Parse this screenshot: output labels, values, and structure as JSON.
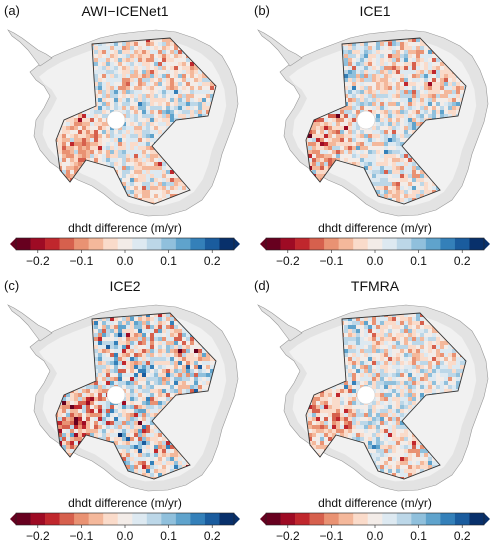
{
  "panels": [
    {
      "letter": "(a)",
      "title": "AWI−ICENet1",
      "intensity": 0.45
    },
    {
      "letter": "(b)",
      "title": "ICE1",
      "intensity": 0.55
    },
    {
      "letter": "(c)",
      "title": "ICE2",
      "intensity": 1.0
    },
    {
      "letter": "(d)",
      "title": "TFMRA",
      "intensity": 0.5
    }
  ],
  "colorbar": {
    "label": "dhdt difference (m/yr)",
    "ticks": [
      "−0.2",
      "−0.1",
      "0.0",
      "0.1",
      "0.2"
    ],
    "tick_values": [
      -0.2,
      -0.1,
      0.0,
      0.1,
      0.2
    ],
    "range": [
      -0.25,
      0.25
    ],
    "colors": [
      "#67001f",
      "#9e0b24",
      "#c0272d",
      "#d6604d",
      "#e99273",
      "#f4b89b",
      "#fadbca",
      "#f3ece8",
      "#dde9f1",
      "#bcd7e8",
      "#90c0dc",
      "#5fa3cc",
      "#3480b9",
      "#1a5c9e",
      "#08306b"
    ]
  }
}
